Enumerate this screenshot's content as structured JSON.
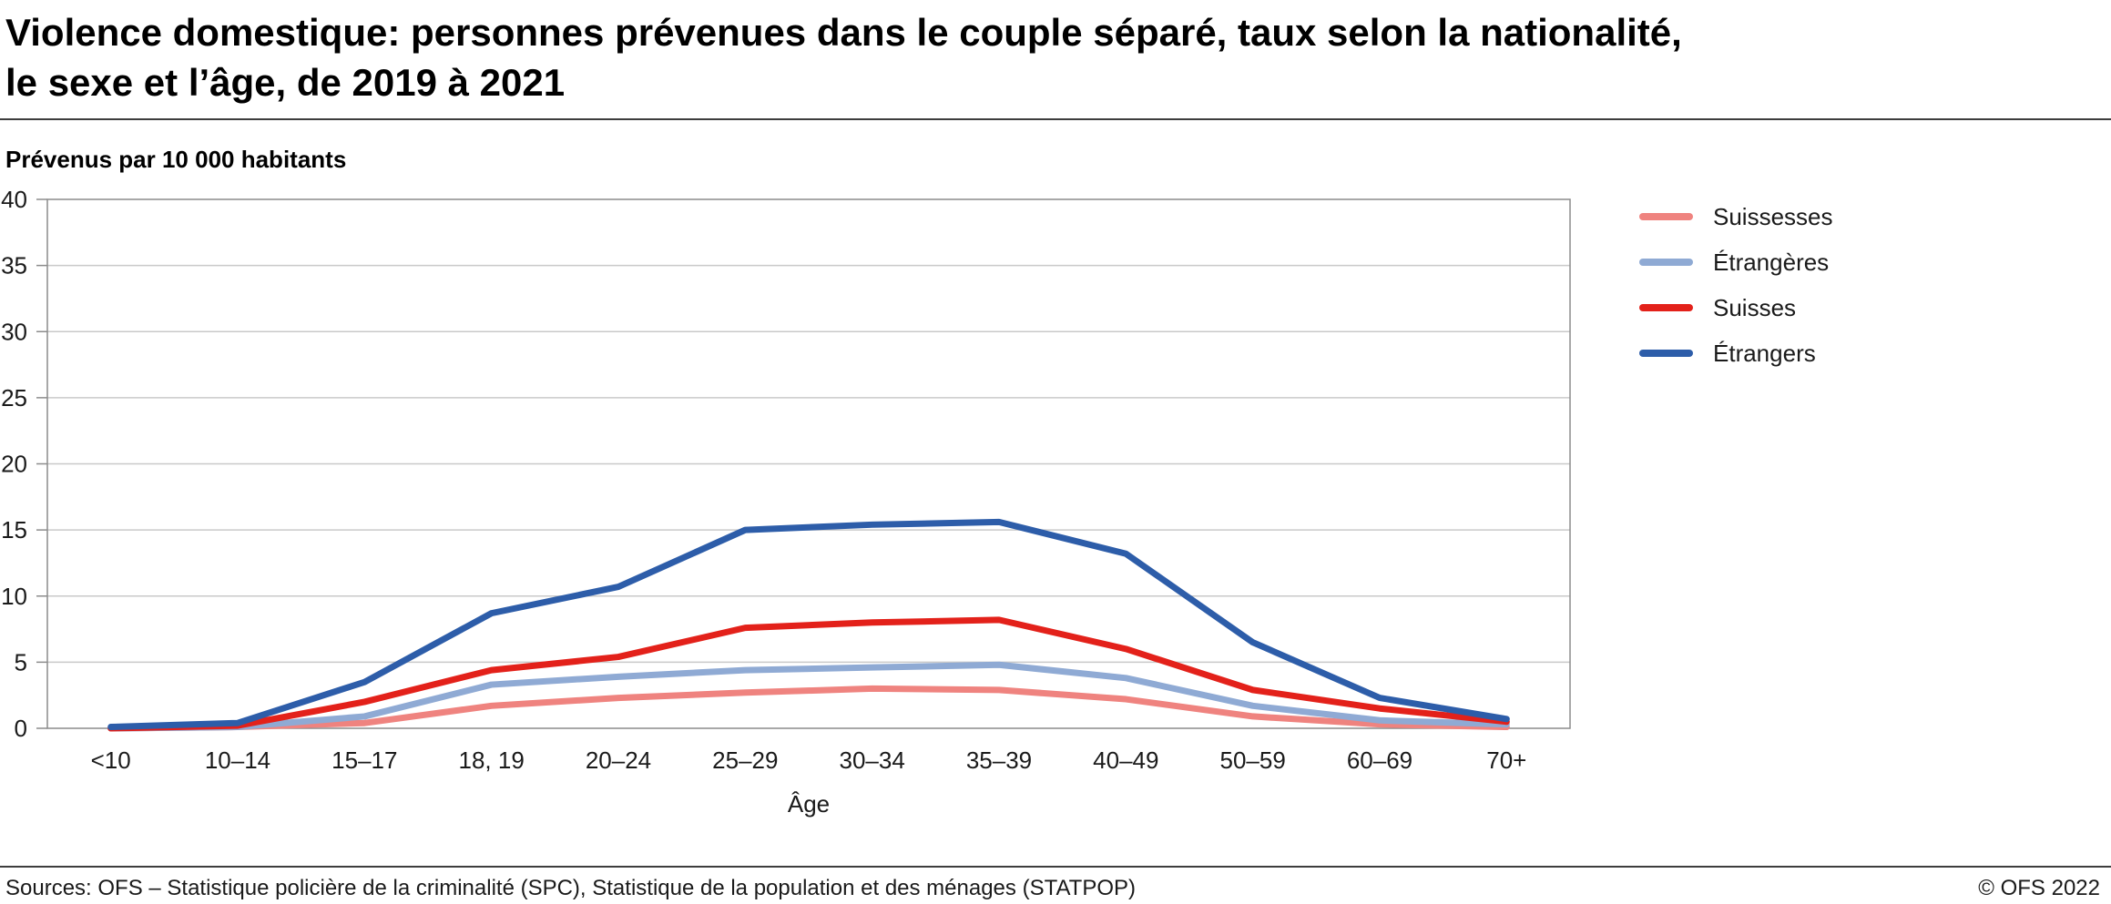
{
  "header": {
    "title": "Violence domestique: personnes prévenues dans le couple séparé, taux selon la nationalité,\nle sexe et l’âge, de 2019 à 2021"
  },
  "chart_data": {
    "type": "line",
    "title": "Violence domestique: personnes prévenues dans le couple séparé, taux selon la nationalité, le sexe et l’âge, de 2019 à 2021",
    "unit_label": "Prévenus par 10 000 habitants",
    "xlabel": "Âge",
    "ylabel": "Prévenus par 10 000 habitants",
    "ylim": [
      0,
      40
    ],
    "ytick_step": 5,
    "grid": "horizontal",
    "legend_position": "right",
    "categories": [
      "<10",
      "10–14",
      "15–17",
      "18, 19",
      "20–24",
      "25–29",
      "30–34",
      "35–39",
      "40–49",
      "50–59",
      "60–69",
      "70+"
    ],
    "series": [
      {
        "name": "Suissesses",
        "color": "#ef837f",
        "values": [
          0,
          0.1,
          0.4,
          1.7,
          2.3,
          2.7,
          3.0,
          2.9,
          2.2,
          0.9,
          0.3,
          0.1
        ]
      },
      {
        "name": "Étrangères",
        "color": "#8faad4",
        "values": [
          0,
          0.1,
          0.9,
          3.3,
          3.9,
          4.4,
          4.6,
          4.8,
          3.8,
          1.7,
          0.6,
          0.3
        ]
      },
      {
        "name": "Suisses",
        "color": "#e3211a",
        "values": [
          0,
          0.2,
          2.0,
          4.4,
          5.4,
          7.6,
          8.0,
          8.2,
          6.0,
          2.9,
          1.5,
          0.5
        ]
      },
      {
        "name": "Étrangers",
        "color": "#2d5da9",
        "values": [
          0.1,
          0.4,
          3.5,
          8.7,
          10.7,
          15.0,
          15.4,
          15.6,
          13.2,
          6.5,
          2.3,
          0.7
        ]
      }
    ]
  },
  "footer": {
    "sources": "Sources: OFS – Statistique policière de la criminalité (SPC), Statistique de la population et des ménages (STATPOP)",
    "copyright": "© OFS 2022"
  }
}
